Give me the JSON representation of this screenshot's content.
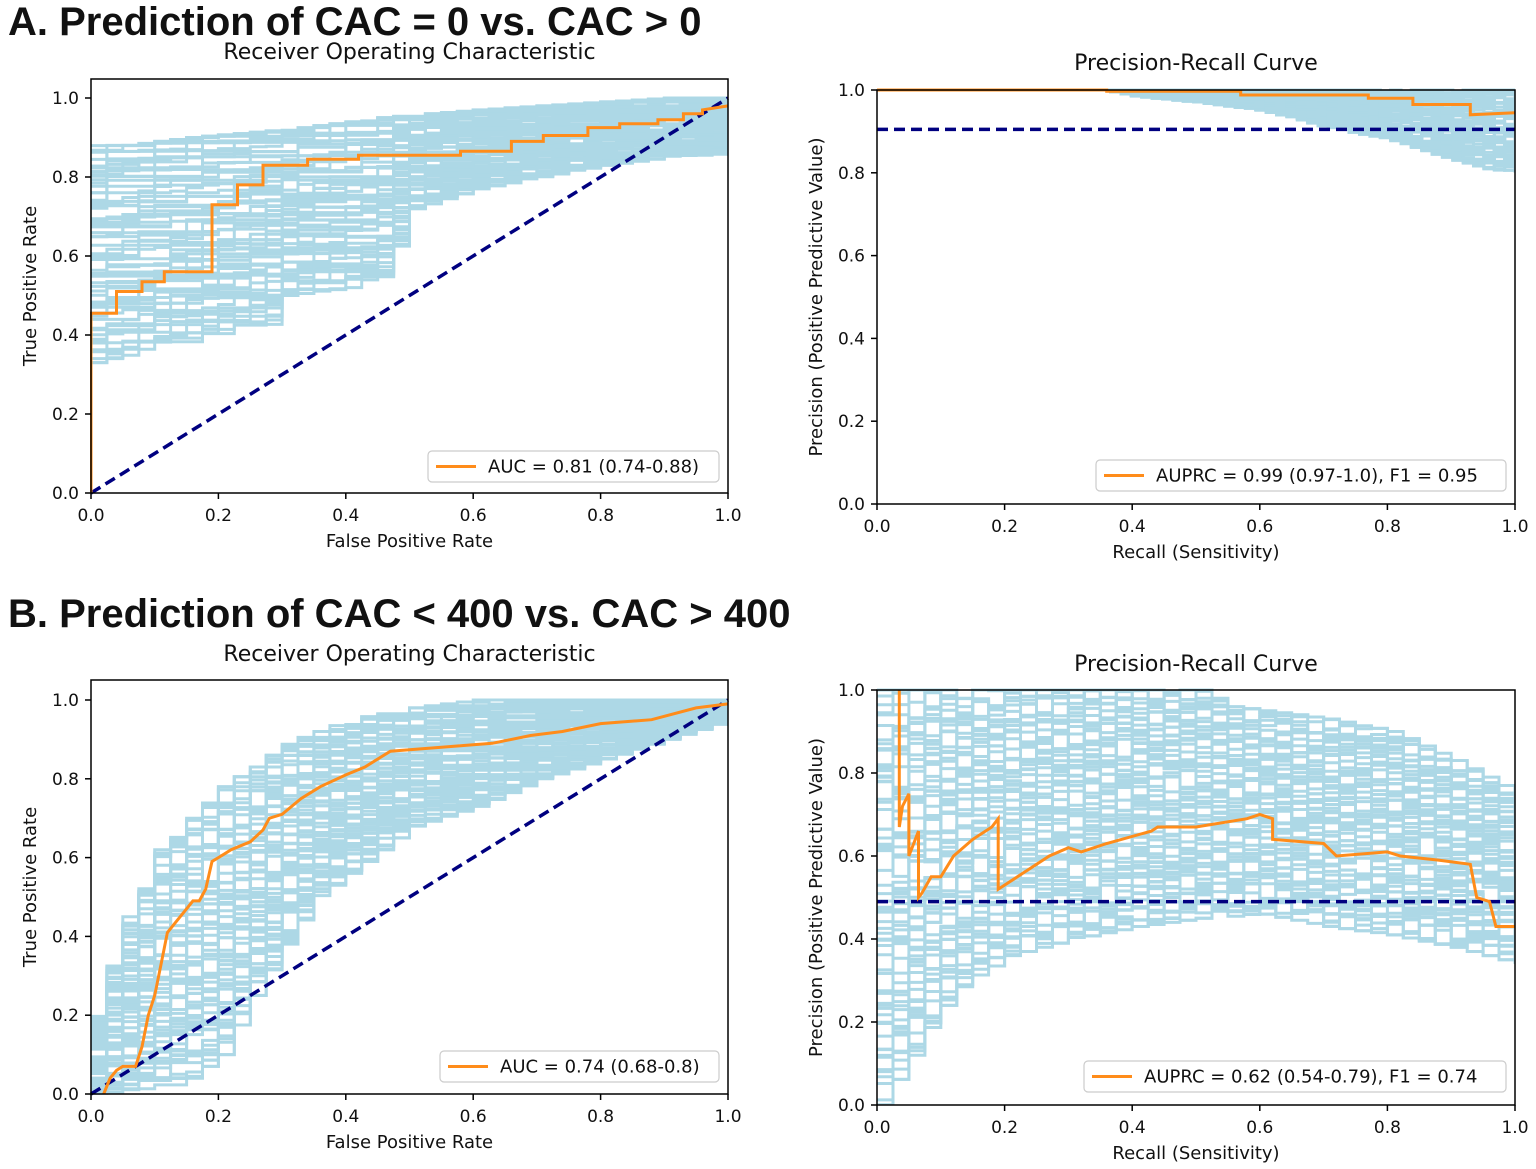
{
  "sections": [
    {
      "title": "A. Prediction of CAC = 0 vs. CAC > 0"
    },
    {
      "title": "B. Prediction of CAC < 400 vs. CAC > 400"
    }
  ],
  "colors": {
    "bootstrap": "#add8e6",
    "model": "#ff8c1a",
    "baseline": "#000080",
    "axis": "#000000"
  },
  "chart_data": [
    {
      "id": "A-roc",
      "type": "line",
      "title": "Receiver Operating Characteristic",
      "xlabel": "False Positive Rate",
      "ylabel": "True Positive Rate",
      "xlim": [
        0,
        1
      ],
      "ylim": [
        0,
        1
      ],
      "xticks": [
        "0.0",
        "0.2",
        "0.4",
        "0.6",
        "0.8",
        "1.0"
      ],
      "yticks": [
        "0.0",
        "0.2",
        "0.4",
        "0.6",
        "0.8",
        "1.0"
      ],
      "grid": false,
      "legend_position": "lower-right",
      "legend": "AUC = 0.81 (0.74-0.88)",
      "model": {
        "x": [
          0,
          0,
          0.04,
          0.04,
          0.08,
          0.08,
          0.115,
          0.115,
          0.19,
          0.19,
          0.23,
          0.23,
          0.27,
          0.27,
          0.34,
          0.34,
          0.42,
          0.42,
          0.58,
          0.58,
          0.66,
          0.66,
          0.71,
          0.71,
          0.78,
          0.78,
          0.83,
          0.83,
          0.89,
          0.89,
          0.93,
          0.93,
          0.96,
          0.96,
          1.0
        ],
        "y": [
          0,
          0.455,
          0.455,
          0.51,
          0.51,
          0.535,
          0.535,
          0.56,
          0.56,
          0.73,
          0.73,
          0.78,
          0.78,
          0.83,
          0.83,
          0.845,
          0.845,
          0.855,
          0.855,
          0.865,
          0.865,
          0.89,
          0.89,
          0.905,
          0.905,
          0.925,
          0.925,
          0.935,
          0.935,
          0.945,
          0.945,
          0.96,
          0.96,
          0.97,
          0.98
        ]
      },
      "baseline": {
        "x": [
          0,
          1
        ],
        "y": [
          0,
          1
        ]
      },
      "band": {
        "lower": [
          [
            0,
            0.33
          ],
          [
            0.05,
            0.34
          ],
          [
            0.12,
            0.37
          ],
          [
            0.2,
            0.4
          ],
          [
            0.28,
            0.42
          ],
          [
            0.3,
            0.5
          ],
          [
            0.35,
            0.51
          ],
          [
            0.45,
            0.53
          ],
          [
            0.5,
            0.72
          ],
          [
            0.6,
            0.77
          ],
          [
            0.7,
            0.8
          ],
          [
            0.8,
            0.83
          ],
          [
            0.9,
            0.85
          ],
          [
            1.0,
            0.86
          ]
        ],
        "upper": [
          [
            0,
            0.88
          ],
          [
            0.05,
            0.88
          ],
          [
            0.15,
            0.9
          ],
          [
            0.3,
            0.92
          ],
          [
            0.45,
            0.95
          ],
          [
            0.6,
            0.97
          ],
          [
            0.75,
            0.985
          ],
          [
            0.9,
            1.0
          ],
          [
            1.0,
            1.0
          ]
        ]
      }
    },
    {
      "id": "A-pr",
      "type": "line",
      "title": "Precision-Recall Curve",
      "xlabel": "Recall (Sensitivity)",
      "ylabel": "Precision (Positive Predictive Value)",
      "xlim": [
        0,
        1
      ],
      "ylim": [
        0,
        1
      ],
      "xticks": [
        "0.0",
        "0.2",
        "0.4",
        "0.6",
        "0.8",
        "1.0"
      ],
      "yticks": [
        "0.0",
        "0.2",
        "0.4",
        "0.6",
        "0.8",
        "1.0"
      ],
      "grid": false,
      "legend_position": "lower-right",
      "legend": "AUPRC = 0.99 (0.97-1.0), F1 = 0.95",
      "model": {
        "x": [
          0,
          0.3,
          0.36,
          0.36,
          0.57,
          0.57,
          0.77,
          0.77,
          0.84,
          0.84,
          0.93,
          0.93,
          1.0
        ],
        "y": [
          1.0,
          1.0,
          1.0,
          0.997,
          0.997,
          0.988,
          0.988,
          0.98,
          0.98,
          0.965,
          0.965,
          0.94,
          0.945
        ]
      },
      "baseline": {
        "x": [
          0,
          1
        ],
        "y": [
          0.905,
          0.905
        ]
      },
      "band": {
        "lower": [
          [
            0.35,
            1.0
          ],
          [
            0.4,
            0.985
          ],
          [
            0.5,
            0.97
          ],
          [
            0.6,
            0.95
          ],
          [
            0.7,
            0.91
          ],
          [
            0.8,
            0.88
          ],
          [
            0.88,
            0.84
          ],
          [
            0.95,
            0.81
          ],
          [
            1.0,
            0.8
          ]
        ],
        "upper": [
          [
            0.35,
            1.0
          ],
          [
            1.0,
            1.0
          ]
        ]
      }
    },
    {
      "id": "B-roc",
      "type": "line",
      "title": "Receiver Operating Characteristic",
      "xlabel": "False Positive Rate",
      "ylabel": "True Positive Rate",
      "xlim": [
        0,
        1
      ],
      "ylim": [
        0,
        1
      ],
      "xticks": [
        "0.0",
        "0.2",
        "0.4",
        "0.6",
        "0.8",
        "1.0"
      ],
      "yticks": [
        "0.0",
        "0.2",
        "0.4",
        "0.6",
        "0.8",
        "1.0"
      ],
      "grid": false,
      "legend_position": "lower-right",
      "legend": "AUC = 0.74 (0.68-0.8)",
      "model": {
        "x": [
          0.02,
          0.03,
          0.04,
          0.05,
          0.07,
          0.08,
          0.09,
          0.1,
          0.11,
          0.12,
          0.13,
          0.14,
          0.15,
          0.16,
          0.17,
          0.18,
          0.19,
          0.2,
          0.21,
          0.22,
          0.25,
          0.27,
          0.28,
          0.3,
          0.33,
          0.36,
          0.4,
          0.43,
          0.47,
          0.55,
          0.63,
          0.69,
          0.74,
          0.8,
          0.88,
          0.95,
          1.0
        ],
        "y": [
          0.0,
          0.04,
          0.06,
          0.07,
          0.07,
          0.12,
          0.2,
          0.25,
          0.33,
          0.41,
          0.43,
          0.45,
          0.47,
          0.49,
          0.49,
          0.52,
          0.59,
          0.6,
          0.61,
          0.62,
          0.64,
          0.67,
          0.7,
          0.71,
          0.75,
          0.78,
          0.81,
          0.83,
          0.87,
          0.88,
          0.89,
          0.91,
          0.92,
          0.94,
          0.95,
          0.98,
          0.99
        ]
      },
      "baseline": {
        "x": [
          0,
          1
        ],
        "y": [
          0,
          1
        ]
      },
      "band": {
        "lower": [
          [
            0.0,
            0.0
          ],
          [
            0.05,
            0.0
          ],
          [
            0.1,
            0.0
          ],
          [
            0.15,
            0.04
          ],
          [
            0.2,
            0.1
          ],
          [
            0.25,
            0.25
          ],
          [
            0.3,
            0.38
          ],
          [
            0.35,
            0.5
          ],
          [
            0.4,
            0.56
          ],
          [
            0.5,
            0.68
          ],
          [
            0.6,
            0.73
          ],
          [
            0.7,
            0.8
          ],
          [
            0.8,
            0.85
          ],
          [
            0.9,
            0.9
          ],
          [
            1.0,
            0.95
          ]
        ],
        "upper": [
          [
            0.0,
            0.2
          ],
          [
            0.02,
            0.3
          ],
          [
            0.05,
            0.45
          ],
          [
            0.08,
            0.55
          ],
          [
            0.1,
            0.62
          ],
          [
            0.15,
            0.7
          ],
          [
            0.2,
            0.78
          ],
          [
            0.25,
            0.83
          ],
          [
            0.3,
            0.89
          ],
          [
            0.4,
            0.95
          ],
          [
            0.5,
            0.98
          ],
          [
            0.6,
            1.0
          ],
          [
            1.0,
            1.0
          ]
        ]
      }
    },
    {
      "id": "B-pr",
      "type": "line",
      "title": "Precision-Recall Curve",
      "xlabel": "Recall (Sensitivity)",
      "ylabel": "Precision (Positive Predictive Value)",
      "xlim": [
        0,
        1
      ],
      "ylim": [
        0,
        1
      ],
      "xticks": [
        "0.0",
        "0.2",
        "0.4",
        "0.6",
        "0.8",
        "1.0"
      ],
      "yticks": [
        "0.0",
        "0.2",
        "0.4",
        "0.6",
        "0.8",
        "1.0"
      ],
      "grid": false,
      "legend_position": "lower-right",
      "legend": "AUPRC = 0.62 (0.54-0.79), F1 = 0.74",
      "model": {
        "x": [
          0.035,
          0.035,
          0.04,
          0.05,
          0.05,
          0.06,
          0.065,
          0.065,
          0.07,
          0.085,
          0.1,
          0.12,
          0.15,
          0.18,
          0.19,
          0.19,
          0.22,
          0.27,
          0.3,
          0.32,
          0.36,
          0.43,
          0.44,
          0.5,
          0.58,
          0.6,
          0.62,
          0.62,
          0.7,
          0.72,
          0.8,
          0.82,
          0.88,
          0.93,
          0.94,
          0.96,
          0.97,
          1.0
        ],
        "y": [
          1.0,
          0.67,
          0.72,
          0.75,
          0.6,
          0.64,
          0.66,
          0.5,
          0.51,
          0.55,
          0.55,
          0.6,
          0.64,
          0.67,
          0.69,
          0.52,
          0.55,
          0.6,
          0.62,
          0.61,
          0.63,
          0.66,
          0.67,
          0.67,
          0.69,
          0.7,
          0.69,
          0.64,
          0.63,
          0.6,
          0.61,
          0.6,
          0.59,
          0.58,
          0.5,
          0.49,
          0.43,
          0.43
        ]
      },
      "baseline": {
        "x": [
          0,
          1
        ],
        "y": [
          0.49,
          0.49
        ]
      },
      "band": {
        "lower": [
          [
            0.0,
            0.0
          ],
          [
            0.02,
            0.05
          ],
          [
            0.05,
            0.12
          ],
          [
            0.08,
            0.2
          ],
          [
            0.12,
            0.28
          ],
          [
            0.2,
            0.36
          ],
          [
            0.3,
            0.4
          ],
          [
            0.4,
            0.43
          ],
          [
            0.5,
            0.45
          ],
          [
            0.6,
            0.46
          ],
          [
            0.7,
            0.43
          ],
          [
            0.8,
            0.41
          ],
          [
            0.9,
            0.38
          ],
          [
            1.0,
            0.34
          ]
        ],
        "upper": [
          [
            0.0,
            1.0
          ],
          [
            0.5,
            1.0
          ],
          [
            0.55,
            0.96
          ],
          [
            0.7,
            0.93
          ],
          [
            0.8,
            0.9
          ],
          [
            0.9,
            0.83
          ],
          [
            1.0,
            0.75
          ]
        ]
      }
    }
  ]
}
